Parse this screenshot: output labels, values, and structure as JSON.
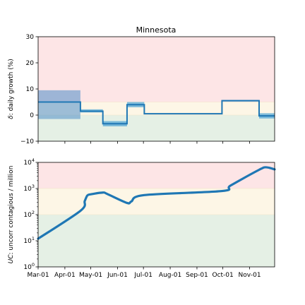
{
  "chart_data": [
    {
      "type": "line",
      "title": "Minnesota",
      "ylabel_main": "δ",
      "ylabel_rest": ": daily growth (%)",
      "ylim": [
        -10,
        30
      ],
      "yticks": [
        "−10",
        "0",
        "10",
        "20",
        "30"
      ],
      "ytick_values": [
        -10,
        0,
        10,
        20,
        30
      ],
      "zones": [
        {
          "from": 5,
          "to": 30,
          "color": "#fde5e6"
        },
        {
          "from": 0,
          "to": 5,
          "color": "#fdf6e6"
        },
        {
          "from": -10,
          "to": 0,
          "color": "#e5f0e5"
        }
      ],
      "x_dates": [
        "2020-03-01",
        "2020-04-19",
        "2020-04-19",
        "2020-05-15",
        "2020-05-15",
        "2020-06-12",
        "2020-06-12",
        "2020-07-02",
        "2020-07-02",
        "2020-09-30",
        "2020-09-30",
        "2020-11-12",
        "2020-11-12",
        "2020-11-30"
      ],
      "series": [
        {
          "values": [
            5.0,
            5.0,
            1.5,
            1.5,
            -3.3,
            -3.3,
            4.0,
            4.0,
            0.5,
            0.5,
            5.5,
            5.5,
            -0.3,
            -0.3
          ]
        }
      ],
      "bands": [
        {
          "start": "2020-03-01",
          "end": "2020-04-19",
          "low": -1.5,
          "high": 9.5,
          "color": "#4f8ec8"
        },
        {
          "start": "2020-04-19",
          "end": "2020-05-15",
          "low": 1.0,
          "high": 2.2,
          "color": "#56a8d6"
        },
        {
          "start": "2020-05-15",
          "end": "2020-06-12",
          "low": -4.3,
          "high": -2.3,
          "color": "#56a8d6"
        },
        {
          "start": "2020-06-12",
          "end": "2020-07-02",
          "low": 3.0,
          "high": 5.0,
          "color": "#56a8d6"
        },
        {
          "start": "2020-07-02",
          "end": "2020-09-30",
          "low": 0.3,
          "high": 0.7,
          "color": "#56a8d6"
        },
        {
          "start": "2020-09-30",
          "end": "2020-11-12",
          "low": 5.2,
          "high": 5.8,
          "color": "#56a8d6"
        },
        {
          "start": "2020-11-12",
          "end": "2020-11-30",
          "low": -1.3,
          "high": 0.7,
          "color": "#56a8d6"
        }
      ],
      "line_color": "#1f77b4"
    },
    {
      "type": "line",
      "ylabel_main": "UC",
      "ylabel_rest": ": uncorr contagious / million",
      "yscale": "log",
      "ylim": [
        1,
        10000
      ],
      "yticks": [
        {
          "base": "10",
          "exp": "0",
          "value": 1
        },
        {
          "base": "10",
          "exp": "1",
          "value": 10
        },
        {
          "base": "10",
          "exp": "2",
          "value": 100
        },
        {
          "base": "10",
          "exp": "3",
          "value": 1000
        },
        {
          "base": "10",
          "exp": "4",
          "value": 10000
        }
      ],
      "zones": [
        {
          "from": 1000,
          "to": 10000,
          "color": "#fde5e6"
        },
        {
          "from": 100,
          "to": 1000,
          "color": "#fdf6e6"
        },
        {
          "from": 1,
          "to": 100,
          "color": "#e5f0e5"
        }
      ],
      "x_dates": [
        "2020-03-01",
        "2020-04-19",
        "2020-04-24",
        "2020-04-27",
        "2020-05-01",
        "2020-05-15",
        "2020-05-20",
        "2020-06-12",
        "2020-06-17",
        "2020-07-02",
        "2020-09-30",
        "2020-10-10",
        "2020-11-12",
        "2020-11-20",
        "2020-11-30"
      ],
      "series": [
        {
          "values": [
            12,
            140,
            330,
            540,
            600,
            700,
            620,
            280,
            320,
            560,
            800,
            1300,
            5200,
            6500,
            5400
          ]
        }
      ],
      "line_color": "#1f77b4"
    }
  ],
  "xaxis": {
    "start": "2020-03-01",
    "end": "2020-11-30",
    "ticks": [
      {
        "label": "Mar-01",
        "date": "2020-03-01"
      },
      {
        "label": "Apr-01",
        "date": "2020-04-01"
      },
      {
        "label": "May-01",
        "date": "2020-05-01"
      },
      {
        "label": "Jun-01",
        "date": "2020-06-01"
      },
      {
        "label": "Jul-01",
        "date": "2020-07-01"
      },
      {
        "label": "Aug-01",
        "date": "2020-08-01"
      },
      {
        "label": "Sep-01",
        "date": "2020-09-01"
      },
      {
        "label": "Oct-01",
        "date": "2020-10-01"
      },
      {
        "label": "Nov-01",
        "date": "2020-11-01"
      }
    ]
  }
}
